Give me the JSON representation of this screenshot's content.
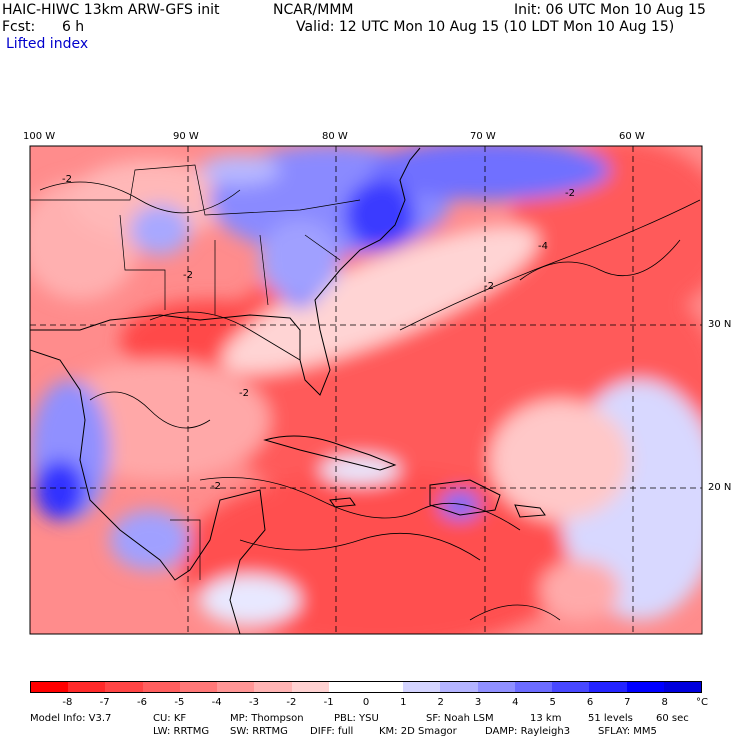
{
  "header": {
    "model_title": "HAIC-HIWC 13km ARW-GFS init",
    "org": "NCAR/MMM",
    "init_time": "Init: 06 UTC Mon 10 Aug 15",
    "forecast": "Fcst:      6 h",
    "valid_time": "Valid: 12 UTC Mon 10 Aug 15 (10 LDT Mon 10 Aug 15)",
    "field_name": "Lifted index"
  },
  "map": {
    "lon_labels": [
      "100 W",
      "90 W",
      "80 W",
      "70 W",
      "60 W"
    ],
    "lat_labels": [
      "30 N",
      "20 N"
    ],
    "contour_labels": [
      "-2",
      "-2",
      "-2",
      "-4",
      "-2",
      "-2",
      "-2"
    ]
  },
  "colorbar": {
    "unit": "°C",
    "ticks": [
      "-8",
      "-7",
      "-6",
      "-5",
      "-4",
      "-3",
      "-2",
      "-1",
      "0",
      "1",
      "2",
      "3",
      "4",
      "5",
      "6",
      "7",
      "8"
    ],
    "colors": [
      "#ff0000",
      "#ff2a2a",
      "#ff4545",
      "#ff5f5f",
      "#ff7878",
      "#ff9696",
      "#ffb4b4",
      "#ffd2d2",
      "#ffffff",
      "#ffffff",
      "#d4d4ff",
      "#b4b4ff",
      "#9090ff",
      "#6c6cff",
      "#4848ff",
      "#2424ff",
      "#0000ff",
      "#0000dd"
    ]
  },
  "footer": {
    "line1": [
      "Model Info: V3.7",
      "CU: KF",
      "MP: Thompson",
      "PBL: YSU",
      "SF: Noah LSM",
      "13 km",
      "51 levels",
      "60 sec"
    ],
    "line2": [
      "LW: RRTMG",
      "SW: RRTMG",
      "DIFF: full",
      "KM: 2D Smagor",
      "DAMP: Rayleigh3",
      "SFLAY: MM5"
    ]
  }
}
